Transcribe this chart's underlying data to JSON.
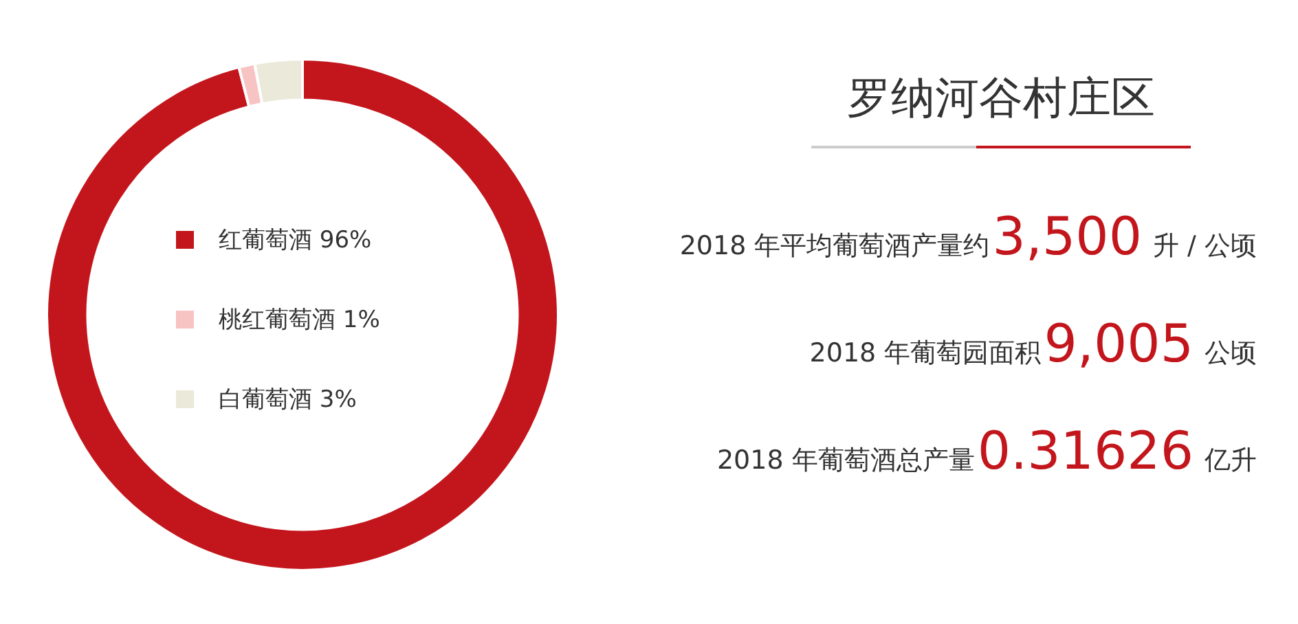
{
  "chart_data": {
    "type": "donut",
    "title": "罗纳河谷村庄区",
    "categories": [
      "红葡萄酒",
      "桃红葡萄酒",
      "白葡萄酒"
    ],
    "values": [
      96,
      1,
      3
    ],
    "value_labels": [
      "96%",
      "1%",
      "3%"
    ],
    "colors": [
      "#c3161c",
      "#f8c3c3",
      "#ebe9d9"
    ],
    "legend": "center",
    "annotations": [
      "2018 年平均葡萄酒产量约3,500升 / 公顷",
      "2018 年葡萄园面积9,005公顷",
      "2018 年葡萄酒总产量0.31626亿升"
    ]
  }
}
